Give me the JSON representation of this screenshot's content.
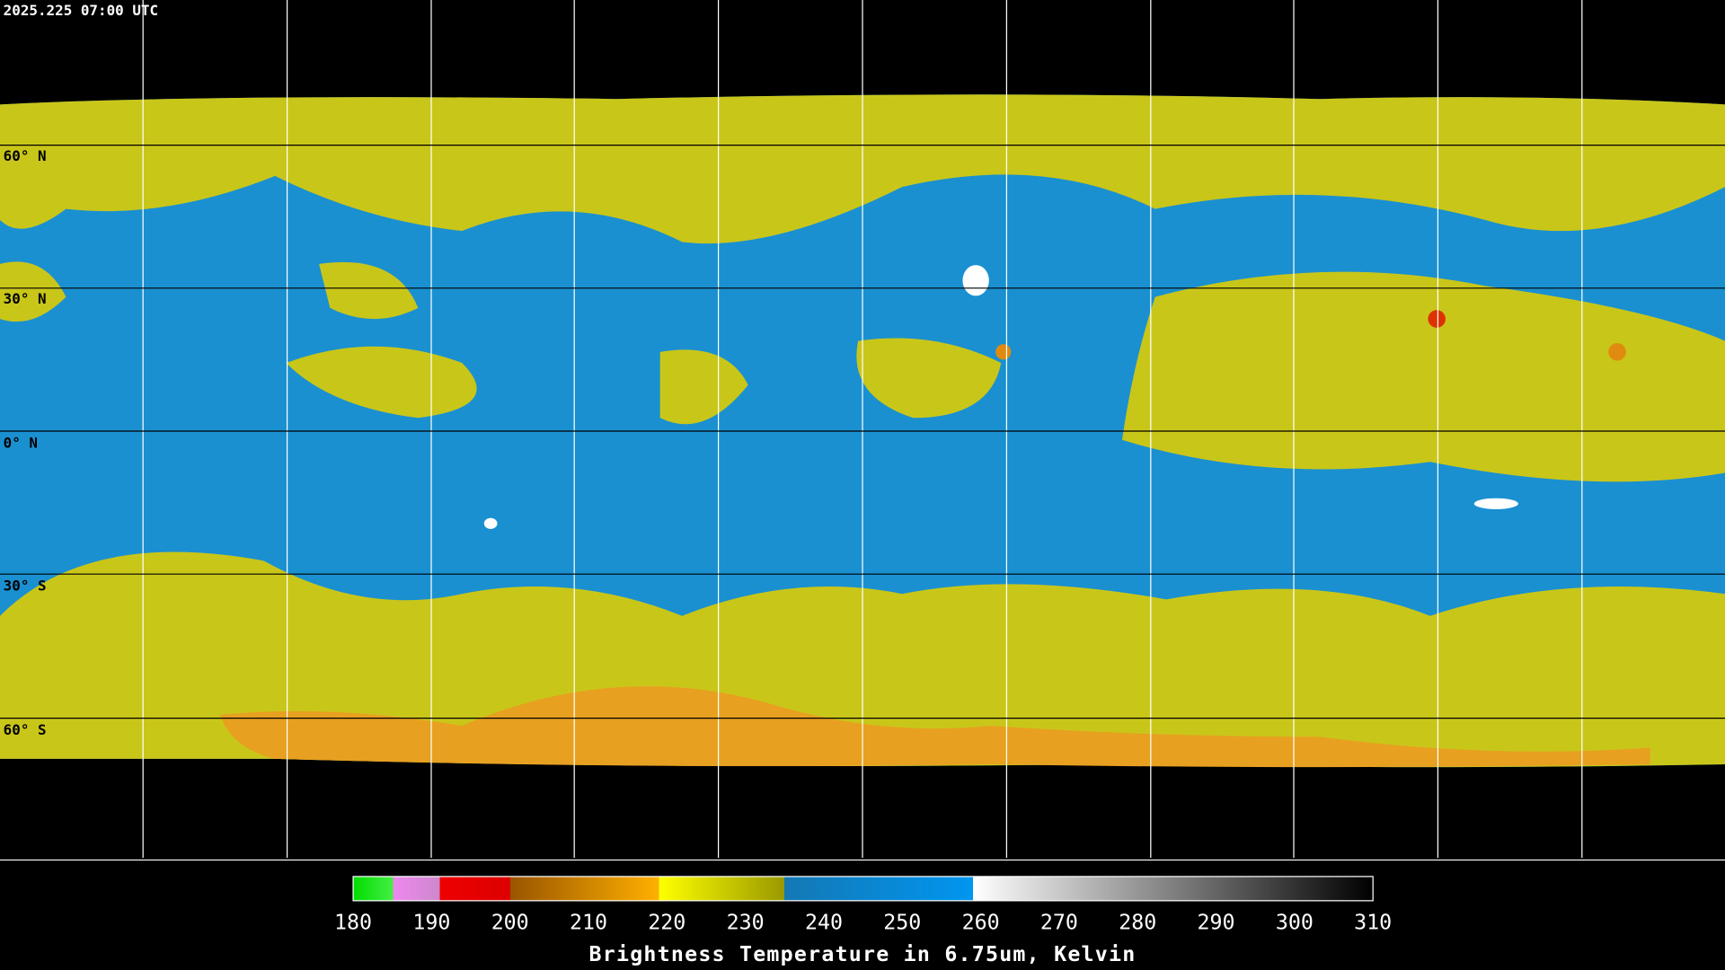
{
  "header": {
    "timestamp": "2025.225 07:00 UTC"
  },
  "map": {
    "latitude_labels": [
      "60° N",
      "30° N",
      "0° N",
      "30° S",
      "60° S"
    ]
  },
  "colorbar": {
    "ticks": [
      180,
      190,
      200,
      210,
      220,
      230,
      240,
      250,
      260,
      270,
      280,
      290,
      300,
      310
    ],
    "title": "Brightness Temperature in 6.75um, Kelvin"
  }
}
